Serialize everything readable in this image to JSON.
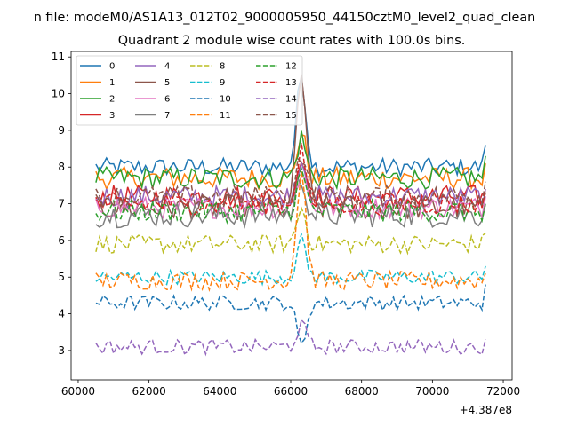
{
  "figure": {
    "suptitle": "n file: modeM0/AS1A13_012T02_9000005950_44150cztM0_level2_quad_clean",
    "offset_label": "+4.387e8"
  },
  "chart_data": {
    "type": "line",
    "title": "Quadrant 2 module wise count rates with 100.0s bins.",
    "xlabel": "",
    "ylabel": "",
    "xlim": [
      59800,
      72250
    ],
    "ylim": [
      2.2,
      11.15
    ],
    "x_ticks": [
      60000,
      62000,
      64000,
      66000,
      68000,
      70000,
      72000
    ],
    "x_tick_labels": [
      "60000",
      "62000",
      "64000",
      "66000",
      "68000",
      "70000",
      "72000"
    ],
    "y_ticks": [
      3,
      4,
      5,
      6,
      7,
      8,
      9,
      10,
      11
    ],
    "y_tick_labels": [
      "3",
      "4",
      "5",
      "6",
      "7",
      "8",
      "9",
      "10",
      "11"
    ],
    "x_start": 60500,
    "x_step": 100,
    "grid": false,
    "legend_position": "upper-left",
    "legend_columns": 4,
    "series": [
      {
        "name": "0",
        "color": "#1f77b4",
        "style": "solid",
        "base": 8.0,
        "noise": 0.25,
        "peak": 2.5,
        "end": 8.6
      },
      {
        "name": "1",
        "color": "#ff7f0e",
        "style": "solid",
        "base": 7.7,
        "noise": 0.3,
        "peak": 1.2,
        "end": 8.1
      },
      {
        "name": "2",
        "color": "#2ca02c",
        "style": "solid",
        "base": 7.7,
        "noise": 0.3,
        "peak": 1.1,
        "end": 8.3
      },
      {
        "name": "3",
        "color": "#d62728",
        "style": "solid",
        "base": 7.2,
        "noise": 0.3,
        "peak": 1.0,
        "end": 7.3
      },
      {
        "name": "4",
        "color": "#9467bd",
        "style": "solid",
        "base": 7.2,
        "noise": 0.3,
        "peak": 1.0,
        "end": 7.4
      },
      {
        "name": "5",
        "color": "#8c564b",
        "style": "solid",
        "base": 6.9,
        "noise": 0.35,
        "peak": 3.7,
        "end": 7.3
      },
      {
        "name": "6",
        "color": "#e377c2",
        "style": "solid",
        "base": 6.9,
        "noise": 0.3,
        "peak": 1.0,
        "end": 7.2
      },
      {
        "name": "7",
        "color": "#7f7f7f",
        "style": "solid",
        "base": 6.7,
        "noise": 0.35,
        "peak": 1.0,
        "end": 7.0
      },
      {
        "name": "8",
        "color": "#bcbd22",
        "style": "dashed",
        "base": 5.9,
        "noise": 0.25,
        "peak": 1.0,
        "end": 6.2
      },
      {
        "name": "9",
        "color": "#17becf",
        "style": "dashed",
        "base": 5.0,
        "noise": 0.2,
        "peak": 1.0,
        "end": 5.3
      },
      {
        "name": "10",
        "color": "#1f77b4",
        "style": "dashed",
        "base": 4.3,
        "noise": 0.2,
        "peak": -1.2,
        "end": 4.8
      },
      {
        "name": "11",
        "color": "#ff7f0e",
        "style": "dashed",
        "base": 4.9,
        "noise": 0.25,
        "peak": 3.0,
        "end": 5.1
      },
      {
        "name": "12",
        "color": "#2ca02c",
        "style": "dashed",
        "base": 6.8,
        "noise": 0.3,
        "peak": 1.0,
        "end": 7.0
      },
      {
        "name": "13",
        "color": "#d62728",
        "style": "dashed",
        "base": 7.0,
        "noise": 0.3,
        "peak": 1.5,
        "end": 7.4
      },
      {
        "name": "14",
        "color": "#9467bd",
        "style": "dashed",
        "base": 3.1,
        "noise": 0.2,
        "peak": 0.6,
        "end": 3.3
      },
      {
        "name": "15",
        "color": "#8c564b",
        "style": "dashed",
        "base": 7.2,
        "noise": 0.3,
        "peak": 1.2,
        "end": 7.6
      }
    ]
  }
}
